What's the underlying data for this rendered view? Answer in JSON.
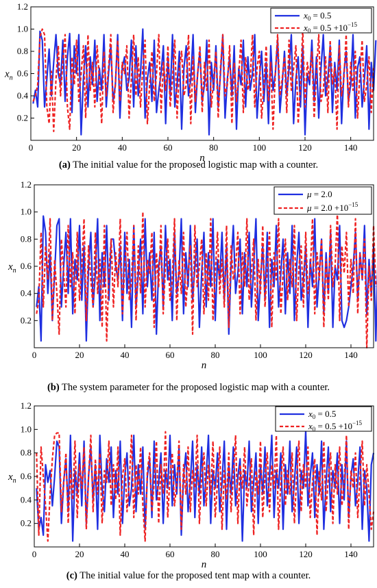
{
  "colors": {
    "series1": "#1f2fe0",
    "series2": "#ee2222"
  },
  "chart_data": [
    {
      "type": "line",
      "xlabel": "n",
      "ylabel": "x",
      "ylabel_sub": "n",
      "xlim": [
        0,
        150
      ],
      "ylim": [
        0,
        1.2
      ],
      "xticks": [
        "0",
        "20",
        "40",
        "60",
        "80",
        "100",
        "120",
        "140"
      ],
      "yticks": [
        "0.2",
        "0.4",
        "0.6",
        "0.8",
        "1.0",
        "1.2"
      ],
      "legend_position": "top-right",
      "series": [
        {
          "name": "x0 = 0.5",
          "legend_main": "x",
          "legend_sub": "0",
          "legend_rest": " = 0.5",
          "legend_sup": "",
          "style": "solid",
          "values": [
            0.33,
            0.45,
            0.3,
            0.98,
            0.9,
            0.3,
            0.55,
            0.82,
            0.4,
            0.7,
            0.95,
            0.6,
            0.5,
            0.9,
            0.35,
            0.75,
            0.96,
            0.25,
            0.85,
            0.6,
            0.95,
            0.05,
            0.55,
            0.85,
            0.3,
            0.75,
            0.5,
            0.9,
            0.35,
            0.65,
            0.45,
            0.95,
            0.3,
            0.6,
            0.85,
            0.35,
            0.5,
            0.95,
            0.2,
            0.65,
            0.75,
            0.45,
            0.55,
            0.9,
            0.3,
            0.85,
            0.4,
            0.6,
            1.0,
            0.2,
            0.55,
            0.7,
            0.35,
            0.9,
            0.25,
            0.45,
            0.6,
            0.85,
            0.15,
            0.75,
            0.4,
            0.95,
            0.3,
            0.5,
            0.8,
            0.1,
            0.65,
            0.85,
            0.4,
            0.55,
            0.95,
            0.25,
            0.6,
            0.8,
            0.35,
            0.5,
            0.9,
            0.05,
            0.7,
            0.45,
            0.85,
            0.3,
            0.6,
            0.95,
            0.2,
            0.55,
            0.75,
            0.4,
            0.85,
            0.1,
            0.65,
            0.5,
            0.9,
            0.3,
            0.75,
            0.45,
            0.6,
            0.95,
            0.2,
            0.55,
            0.8,
            0.35,
            0.7,
            0.15,
            0.85,
            0.45,
            0.6,
            0.9,
            0.25,
            0.5,
            0.8,
            0.4,
            0.65,
            0.95,
            0.15,
            0.55,
            0.75,
            0.3,
            0.85,
            0.05,
            0.6,
            0.5,
            0.9,
            0.35,
            0.75,
            0.2,
            0.65,
            0.95,
            0.4,
            0.55,
            0.85,
            0.25,
            0.7,
            0.45,
            0.9,
            0.15,
            0.6,
            0.8,
            0.35,
            0.5,
            0.95,
            0.2,
            0.65,
            0.75,
            0.3,
            0.55,
            0.85,
            0.1,
            0.7,
            0.45,
            0.9
          ]
        },
        {
          "name": "x0 = 0.5 +10^-15",
          "legend_main": "x",
          "legend_sub": "0",
          "legend_rest": " = 0.5 +10",
          "legend_sup": "−15",
          "style": "dashed",
          "values": [
            0.35,
            0.4,
            0.5,
            0.93,
            1.0,
            0.95,
            0.3,
            0.15,
            0.62,
            0.08,
            0.55,
            0.85,
            0.4,
            0.7,
            0.95,
            0.3,
            0.1,
            0.75,
            0.5,
            0.9,
            0.35,
            0.6,
            0.85,
            0.2,
            0.95,
            0.45,
            0.7,
            0.3,
            0.85,
            0.55,
            0.15,
            0.8,
            0.4,
            0.65,
            0.95,
            0.25,
            0.5,
            0.9,
            0.35,
            0.7,
            0.6,
            0.85,
            0.2,
            0.55,
            0.95,
            0.4,
            0.75,
            0.3,
            0.65,
            0.9,
            0.15,
            0.5,
            0.8,
            0.35,
            0.6,
            0.95,
            0.25,
            0.7,
            0.45,
            0.85,
            0.3,
            0.55,
            0.9,
            0.2,
            0.65,
            0.8,
            0.4,
            0.5,
            0.95,
            0.15,
            0.75,
            0.35,
            0.6,
            0.85,
            0.25,
            0.7,
            0.45,
            0.9,
            0.3,
            0.55,
            0.8,
            0.2,
            0.65,
            0.95,
            0.4,
            0.5,
            0.85,
            0.15,
            0.7,
            0.35,
            0.6,
            0.9,
            0.25,
            0.75,
            0.45,
            0.55,
            0.95,
            0.3,
            0.65,
            0.8,
            0.2,
            0.5,
            0.85,
            0.35,
            0.7,
            0.1,
            0.6,
            0.95,
            0.4,
            0.55,
            0.75,
            0.25,
            0.9,
            0.45,
            0.65,
            0.85,
            0.15,
            0.5,
            1.0,
            0.3,
            0.7,
            0.55,
            0.8,
            0.2,
            0.6,
            0.95,
            0.35,
            0.45,
            0.75,
            0.25,
            0.9,
            0.5,
            0.65,
            0.1,
            0.85,
            0.4,
            0.55,
            0.95,
            0.3,
            0.7,
            0.45,
            0.8,
            0.2,
            0.6,
            0.9,
            0.35,
            0.5,
            0.75,
            0.25,
            0.65
          ]
        }
      ]
    },
    {
      "type": "line",
      "xlabel": "n",
      "ylabel": "x",
      "ylabel_sub": "n",
      "xlim": [
        0,
        150
      ],
      "ylim": [
        0,
        1.2
      ],
      "xticks": [
        "0",
        "20",
        "40",
        "60",
        "80",
        "100",
        "120",
        "140"
      ],
      "yticks": [
        "0.2",
        "0.4",
        "0.6",
        "0.8",
        "1.0",
        "1.2"
      ],
      "legend_position": "top-right",
      "series": [
        {
          "name": "μ = 2.0",
          "legend_main": "μ",
          "legend_sub": "",
          "legend_rest": " = 2.0",
          "legend_sup": "",
          "style": "solid",
          "values": [
            0.3,
            0.45,
            0.05,
            0.97,
            0.85,
            0.4,
            0.7,
            0.2,
            0.55,
            0.9,
            0.95,
            0.3,
            0.6,
            0.85,
            0.4,
            0.95,
            0.25,
            0.65,
            0.5,
            0.9,
            0.35,
            0.75,
            0.05,
            0.6,
            0.85,
            0.3,
            0.55,
            0.95,
            0.2,
            0.7,
            0.45,
            0.9,
            0.35,
            0.8,
            0.8,
            0.6,
            0.5,
            0.75,
            0.2,
            0.85,
            0.4,
            0.65,
            0.15,
            0.9,
            0.3,
            0.55,
            0.8,
            0.25,
            0.95,
            0.45,
            0.7,
            0.35,
            0.85,
            0.1,
            0.6,
            0.75,
            0.3,
            0.9,
            0.5,
            0.65,
            0.2,
            0.85,
            0.4,
            0.55,
            0.95,
            0.25,
            0.7,
            0.45,
            0.9,
            0.35,
            0.6,
            0.8,
            0.15,
            0.55,
            0.85,
            0.3,
            0.7,
            0.45,
            0.95,
            0.2,
            0.65,
            0.5,
            0.85,
            0.35,
            0.75,
            0.1,
            0.6,
            0.9,
            0.4,
            0.55,
            0.8,
            0.25,
            0.7,
            0.45,
            0.85,
            0.3,
            0.6,
            0.95,
            0.2,
            0.5,
            0.75,
            0.35,
            0.85,
            0.15,
            0.65,
            0.45,
            0.9,
            0.3,
            0.55,
            0.8,
            0.25,
            0.7,
            0.4,
            0.9,
            0.2,
            0.6,
            0.85,
            0.35,
            0.5,
            0.75,
            0.15,
            0.65,
            0.45,
            0.95,
            0.3,
            0.55,
            0.8,
            0.25,
            0.7,
            0.4,
            0.85,
            0.15,
            0.6,
            0.5,
            0.9,
            0.2,
            0.15,
            0.2,
            0.3,
            0.45,
            0.6,
            0.85,
            0.35,
            0.7,
            0.5,
            0.9,
            0.25,
            0.65,
            0.4,
            0.75,
            0.05,
            0.7
          ]
        },
        {
          "name": "μ = 2.0 +10^-15",
          "legend_main": "μ",
          "legend_sub": "",
          "legend_rest": " = 2.0 +10",
          "legend_sup": "−15",
          "style": "dashed",
          "values": [
            0.25,
            0.35,
            0.85,
            0.3,
            0.75,
            0.5,
            0.95,
            0.2,
            0.65,
            0.4,
            0.1,
            0.8,
            0.55,
            0.3,
            0.9,
            0.45,
            0.7,
            0.25,
            0.85,
            0.35,
            0.6,
            0.95,
            0.2,
            0.75,
            0.5,
            0.3,
            0.85,
            0.4,
            0.65,
            0.15,
            0.9,
            0.05,
            0.55,
            0.8,
            0.3,
            0.7,
            0.45,
            0.95,
            0.25,
            0.6,
            0.85,
            0.35,
            0.5,
            0.9,
            0.2,
            0.75,
            0.4,
            1.0,
            0.3,
            0.65,
            0.55,
            0.85,
            0.15,
            0.7,
            0.45,
            0.9,
            0.25,
            0.6,
            0.8,
            0.35,
            0.5,
            0.95,
            0.2,
            0.65,
            0.4,
            0.85,
            0.3,
            0.55,
            0.75,
            0.1,
            0.9,
            0.45,
            0.6,
            0.8,
            0.25,
            0.7,
            0.35,
            0.95,
            0.2,
            0.55,
            0.85,
            0.4,
            0.65,
            0.3,
            0.9,
            0.15,
            0.75,
            0.5,
            0.6,
            0.85,
            0.25,
            0.7,
            0.45,
            0.95,
            0.35,
            0.55,
            0.8,
            0.2,
            0.65,
            0.4,
            0.9,
            0.3,
            0.6,
            0.85,
            0.15,
            0.7,
            0.5,
            0.95,
            0.25,
            0.55,
            0.8,
            0.35,
            0.65,
            0.45,
            0.9,
            0.2,
            0.6,
            0.75,
            0.3,
            0.85,
            0.4,
            0.55,
            0.95,
            0.25,
            0.7,
            0.5,
            0.8,
            0.15,
            0.65,
            0.35,
            0.9,
            0.45,
            0.6,
            1.0,
            0.2,
            0.75,
            0.55,
            0.85,
            0.3,
            0.65,
            0.4,
            0.95,
            0.25,
            0.7,
            0.5,
            0.8,
            0.0,
            0.6,
            0.35,
            0.9,
            0.45
          ]
        }
      ]
    },
    {
      "type": "line",
      "xlabel": "n",
      "ylabel": "x",
      "ylabel_sub": "n",
      "xlim": [
        0,
        150
      ],
      "ylim": [
        0,
        1.2
      ],
      "xticks": [
        "0",
        "20",
        "40",
        "60",
        "80",
        "100",
        "120",
        "140"
      ],
      "yticks": [
        "0.2",
        "0.4",
        "0.6",
        "0.8",
        "1.0",
        "1.2"
      ],
      "legend_position": "top-right",
      "series": [
        {
          "name": "x0 = 0.5",
          "legend_main": "x",
          "legend_sub": "0",
          "legend_rest": " = 0.5",
          "legend_sup": "",
          "style": "solid",
          "values": [
            0.5,
            0.15,
            0.25,
            0.1,
            0.7,
            0.55,
            0.65,
            0.35,
            0.6,
            0.9,
            0.85,
            0.2,
            0.55,
            0.75,
            0.3,
            0.95,
            0.05,
            0.65,
            0.45,
            0.8,
            0.35,
            0.9,
            0.2,
            0.6,
            0.85,
            0.4,
            0.7,
            0.15,
            0.95,
            0.5,
            0.3,
            0.75,
            0.55,
            0.85,
            0.25,
            0.65,
            0.45,
            0.9,
            0.2,
            0.6,
            0.8,
            0.35,
            0.5,
            0.95,
            0.3,
            0.7,
            0.45,
            0.85,
            0.15,
            0.6,
            0.75,
            0.25,
            0.9,
            0.4,
            0.55,
            0.8,
            0.2,
            0.65,
            0.5,
            0.95,
            0.35,
            0.7,
            0.45,
            0.85,
            0.1,
            0.6,
            0.8,
            0.3,
            0.55,
            0.9,
            0.25,
            0.7,
            0.45,
            0.85,
            0.35,
            0.6,
            0.95,
            0.2,
            0.65,
            0.5,
            0.8,
            0.3,
            0.55,
            0.9,
            0.15,
            0.7,
            0.45,
            0.85,
            0.35,
            0.6,
            0.75,
            0.05,
            0.65,
            0.5,
            0.9,
            0.3,
            0.55,
            0.8,
            0.2,
            0.7,
            0.45,
            0.85,
            0.35,
            0.6,
            0.95,
            0.25,
            0.65,
            0.5,
            0.8,
            0.15,
            0.7,
            0.45,
            0.9,
            0.3,
            0.55,
            0.85,
            0.2,
            0.65,
            0.5,
            0.99,
            0.35,
            0.6,
            0.8,
            0.25,
            0.7,
            0.45,
            0.9,
            0.15,
            0.55,
            0.85,
            0.3,
            0.65,
            0.5,
            0.8,
            0.2,
            0.7,
            0.4,
            0.9,
            0.25,
            0.6,
            0.75,
            0.35,
            0.55,
            0.85,
            0.15,
            0.65,
            0.5,
            0.05,
            0.7,
            0.8
          ]
        },
        {
          "name": "x0 = 0.5 +10^-15",
          "legend_main": "x",
          "legend_sub": "0",
          "legend_rest": " = 0.5 +10",
          "legend_sup": "−15",
          "style": "dashed",
          "values": [
            0.8,
            0.1,
            0.85,
            0.6,
            0.35,
            0.05,
            0.45,
            0.75,
            0.95,
            0.97,
            0.97,
            0.3,
            0.55,
            0.8,
            0.2,
            0.65,
            0.4,
            0.9,
            0.25,
            0.7,
            0.5,
            0.85,
            0.15,
            0.6,
            0.95,
            0.3,
            0.75,
            0.45,
            0.8,
            0.2,
            0.65,
            0.55,
            0.9,
            0.35,
            0.7,
            0.4,
            0.85,
            0.1,
            0.6,
            0.75,
            0.3,
            0.55,
            0.95,
            0.25,
            0.7,
            0.45,
            0.85,
            0.35,
            0.05,
            0.65,
            0.8,
            0.3,
            0.55,
            0.9,
            0.2,
            0.7,
            0.45,
            0.98,
            0.25,
            0.6,
            0.8,
            0.35,
            0.55,
            0.9,
            0.15,
            0.7,
            0.45,
            0.85,
            0.3,
            0.65,
            0.5,
            0.95,
            0.2,
            0.6,
            0.8,
            0.35,
            0.7,
            0.45,
            0.9,
            0.25,
            0.55,
            0.85,
            0.15,
            0.65,
            0.4,
            0.8,
            0.3,
            0.6,
            0.95,
            0.2,
            0.7,
            0.5,
            0.85,
            0.35,
            0.55,
            0.75,
            0.1,
            0.65,
            0.45,
            0.9,
            0.25,
            0.6,
            0.8,
            0.3,
            0.7,
            0.5,
            0.95,
            0.15,
            0.55,
            0.85,
            0.35,
            0.65,
            0.45,
            0.8,
            0.2,
            0.6,
            0.9,
            0.3,
            0.7,
            0.5,
            0.85,
            0.25,
            0.55,
            0.75,
            0.1,
            0.65,
            0.4,
            0.9,
            0.3,
            0.6,
            0.8,
            0.2,
            0.7,
            0.45,
            0.85,
            0.35,
            0.55,
            0.95,
            0.15,
            0.65,
            0.5,
            0.8,
            0.25,
            0.6,
            0.9,
            0.35,
            0.7,
            0.45,
            0.15,
            0.3
          ]
        }
      ]
    }
  ],
  "captions": [
    {
      "label": "(a)",
      "text": " The initial value for the proposed logistic map with a counter."
    },
    {
      "label": "(b)",
      "text": " The system parameter for the proposed logistic map with a counter."
    },
    {
      "label": "(c)",
      "text": " The initial value for the proposed tent map with a counter."
    }
  ]
}
